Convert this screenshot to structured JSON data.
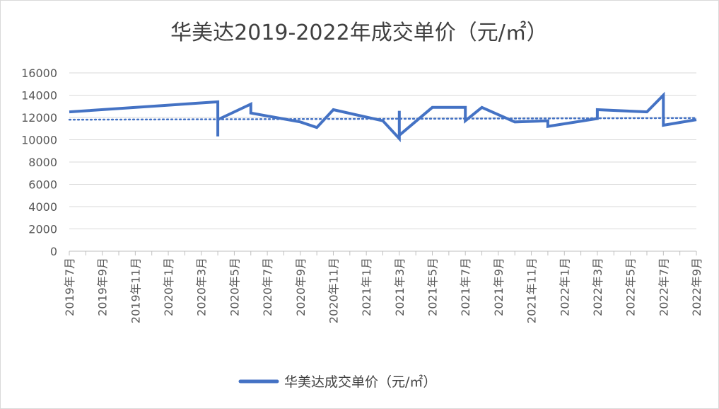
{
  "chart_data": {
    "type": "line",
    "title": "华美达2019-2022年成交单价（元/㎡）",
    "xlabel": "",
    "ylabel": "",
    "ylim": [
      0,
      16000
    ],
    "yticks": [
      0,
      2000,
      4000,
      6000,
      8000,
      10000,
      12000,
      14000,
      16000
    ],
    "x_tick_labels": [
      "2019年7月",
      "2019年9月",
      "2019年11月",
      "2020年1月",
      "2020年3月",
      "2020年5月",
      "2020年7月",
      "2020年9月",
      "2020年11月",
      "2021年1月",
      "2021年3月",
      "2021年5月",
      "2021年7月",
      "2021年9月",
      "2021年11月",
      "2022年1月",
      "2022年3月",
      "2022年5月",
      "2022年7月",
      "2022年9月"
    ],
    "grid": true,
    "legend": "bottom",
    "series": [
      {
        "name": "华美达成交单价（元/㎡）",
        "color": "#4472C4",
        "values": [
          {
            "x": "2019-07",
            "y": 12500
          },
          {
            "x": "2020-04",
            "y": 13400
          },
          {
            "x": "2020-04",
            "y": 10300
          },
          {
            "x": "2020-04",
            "y": 11800
          },
          {
            "x": "2020-06",
            "y": 13200
          },
          {
            "x": "2020-06",
            "y": 12400
          },
          {
            "x": "2020-09",
            "y": 11600
          },
          {
            "x": "2020-10",
            "y": 11100
          },
          {
            "x": "2020-11",
            "y": 12700
          },
          {
            "x": "2021-02",
            "y": 11700
          },
          {
            "x": "2021-03",
            "y": 10100
          },
          {
            "x": "2021-03",
            "y": 12600
          },
          {
            "x": "2021-03",
            "y": 10400
          },
          {
            "x": "2021-05",
            "y": 12900
          },
          {
            "x": "2021-07",
            "y": 12900
          },
          {
            "x": "2021-07",
            "y": 11700
          },
          {
            "x": "2021-08",
            "y": 12900
          },
          {
            "x": "2021-10",
            "y": 11600
          },
          {
            "x": "2021-12",
            "y": 11700
          },
          {
            "x": "2021-12",
            "y": 11200
          },
          {
            "x": "2022-03",
            "y": 11900
          },
          {
            "x": "2022-03",
            "y": 12700
          },
          {
            "x": "2022-06",
            "y": 12500
          },
          {
            "x": "2022-07",
            "y": 14000
          },
          {
            "x": "2022-07",
            "y": 11300
          },
          {
            "x": "2022-09",
            "y": 11800
          }
        ],
        "trendline": {
          "color": "#4472C4",
          "style": "dotted",
          "start": 11800,
          "end": 11950
        }
      }
    ]
  }
}
